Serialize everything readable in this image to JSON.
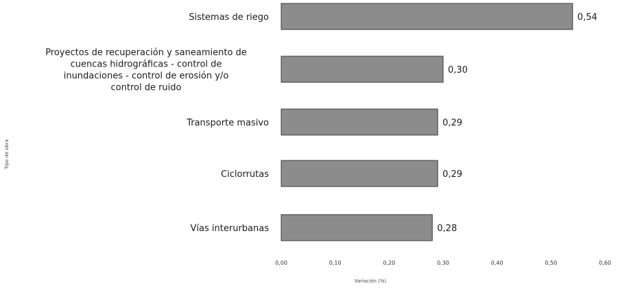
{
  "chart_data": {
    "type": "bar",
    "orientation": "horizontal",
    "categories": [
      "Sistemas de riego",
      "Proyectos de recuperación y saneamiento de cuencas hidrográficas - control de inundaciones - control de erosión y/o control de ruido",
      "Transporte masivo",
      "Ciclorrutas",
      "Vías interurbanas"
    ],
    "category_lines": [
      [
        "Sistemas de riego"
      ],
      [
        "Proyectos de recuperación y saneamiento de",
        "cuencas hidrográficas - control de",
        "inundaciones - control de erosión y/o",
        "control de ruido"
      ],
      [
        "Transporte masivo"
      ],
      [
        "Ciclorrutas"
      ],
      [
        "Vías interurbanas"
      ]
    ],
    "values": [
      0.54,
      0.3,
      0.29,
      0.29,
      0.28
    ],
    "value_labels": [
      "0,54",
      "0,30",
      "0,29",
      "0,29",
      "0,28"
    ],
    "xticks": [
      "0,00",
      "0,10",
      "0,20",
      "0,30",
      "0,40",
      "0,50",
      "0,60"
    ],
    "xlim": [
      0,
      0.6
    ],
    "xlabel": "Variación (%)",
    "ylabel": "Tipo de obra",
    "bar_color": "#8c8c8c",
    "grid": false,
    "legend": "none"
  }
}
